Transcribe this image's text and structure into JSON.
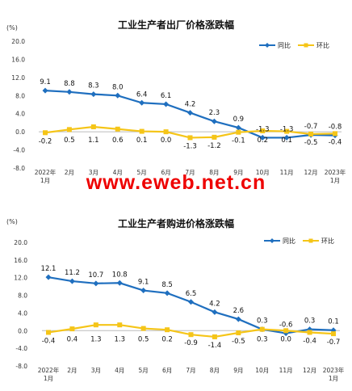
{
  "watermark": "www.eweb.net.cn",
  "chart_data": [
    {
      "type": "line",
      "title": "工业生产者出厂价格涨跌幅",
      "unit": "(%)",
      "categories": [
        "2022年\n1月",
        "2月",
        "3月",
        "4月",
        "5月",
        "6月",
        "7月",
        "8月",
        "9月",
        "10月",
        "11月",
        "12月",
        "2023年\n1月"
      ],
      "yticks": [
        "20.0",
        "16.0",
        "12.0",
        "8.0",
        "4.0",
        "0.0",
        "-4.0",
        "-8.0"
      ],
      "ylim": [
        -8,
        20
      ],
      "legend_position": "top-right",
      "series": [
        {
          "name": "同比",
          "color": "#1f6fbf",
          "marker": "diamond",
          "values": [
            9.1,
            8.8,
            8.3,
            8.0,
            6.4,
            6.1,
            4.2,
            2.3,
            0.9,
            -1.3,
            -1.3,
            -0.7,
            -0.8
          ],
          "labels": [
            "9.1",
            "8.8",
            "8.3",
            "8.0",
            "6.4",
            "6.1",
            "4.2",
            "2.3",
            "0.9",
            "-1.3",
            "-1.3",
            "-0.7",
            "-0.8"
          ]
        },
        {
          "name": "环比",
          "color": "#f5c518",
          "marker": "square",
          "values": [
            -0.2,
            0.5,
            1.1,
            0.6,
            0.1,
            0.0,
            -1.3,
            -1.2,
            -0.1,
            0.2,
            0.1,
            -0.5,
            -0.4
          ],
          "labels": [
            "-0.2",
            "0.5",
            "1.1",
            "0.6",
            "0.1",
            "0.0",
            "-1.3",
            "-1.2",
            "-0.1",
            "0.2",
            "0.1",
            "-0.5",
            "-0.4"
          ]
        }
      ]
    },
    {
      "type": "line",
      "title": "工业生产者购进价格涨跌幅",
      "unit": "(%)",
      "categories": [
        "2022年\n1月",
        "2月",
        "3月",
        "4月",
        "5月",
        "6月",
        "7月",
        "8月",
        "9月",
        "10月",
        "11月",
        "12月",
        "2023年\n1月"
      ],
      "yticks": [
        "20.0",
        "16.0",
        "12.0",
        "8.0",
        "4.0",
        "0.0",
        "-4.0",
        "-8.0"
      ],
      "ylim": [
        -8,
        20
      ],
      "legend_position": "top-right",
      "series": [
        {
          "name": "同比",
          "color": "#1f6fbf",
          "marker": "diamond",
          "values": [
            12.1,
            11.2,
            10.7,
            10.8,
            9.1,
            8.5,
            6.5,
            4.2,
            2.6,
            0.3,
            -0.6,
            0.3,
            0.1
          ],
          "labels": [
            "12.1",
            "11.2",
            "10.7",
            "10.8",
            "9.1",
            "8.5",
            "6.5",
            "4.2",
            "2.6",
            "0.3",
            "-0.6",
            "0.3",
            "0.1"
          ]
        },
        {
          "name": "环比",
          "color": "#f5c518",
          "marker": "square",
          "values": [
            -0.4,
            0.4,
            1.3,
            1.3,
            0.5,
            0.2,
            -0.9,
            -1.4,
            -0.5,
            0.3,
            0.0,
            -0.4,
            -0.7
          ],
          "labels": [
            "-0.4",
            "0.4",
            "1.3",
            "1.3",
            "0.5",
            "0.2",
            "-0.9",
            "-1.4",
            "-0.5",
            "0.3",
            "0.0",
            "-0.4",
            "-0.7"
          ]
        }
      ]
    }
  ]
}
